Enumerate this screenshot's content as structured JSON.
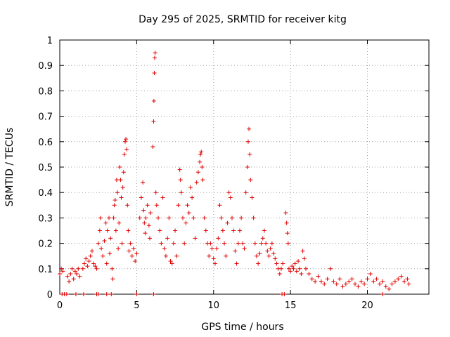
{
  "chart_data": {
    "type": "scatter",
    "title": "Day 295 of 2025, SRMTID for receiver kitg",
    "xlabel": "GPS time / hours",
    "ylabel": "SRMTID / TECUs",
    "xlim": [
      0,
      24
    ],
    "ylim": [
      0,
      1
    ],
    "x_ticks": [
      0,
      5,
      10,
      15,
      20
    ],
    "x_tick_labels": [
      "0",
      "5",
      "10",
      "15",
      "20"
    ],
    "y_ticks": [
      0,
      0.1,
      0.2,
      0.3,
      0.4,
      0.5,
      0.6,
      0.7,
      0.8,
      0.9,
      1
    ],
    "y_tick_labels": [
      "0",
      "0.1",
      "0.2",
      "0.3",
      "0.4",
      "0.5",
      "0.6",
      "0.7",
      "0.8",
      "0.9",
      "1"
    ],
    "grid": true,
    "marker": "plus",
    "series": [
      {
        "name": "SRMTID",
        "color": "#e00000",
        "points": [
          [
            0.0,
            0.08
          ],
          [
            0.1,
            0.1
          ],
          [
            0.2,
            0.09
          ],
          [
            0.5,
            0.07
          ],
          [
            0.6,
            0.05
          ],
          [
            0.7,
            0.08
          ],
          [
            0.8,
            0.1
          ],
          [
            0.9,
            0.06
          ],
          [
            1.0,
            0.09
          ],
          [
            1.1,
            0.08
          ],
          [
            1.2,
            0.1
          ],
          [
            1.3,
            0.07
          ],
          [
            1.5,
            0.1
          ],
          [
            1.6,
            0.12
          ],
          [
            1.7,
            0.14
          ],
          [
            1.8,
            0.11
          ],
          [
            1.9,
            0.13
          ],
          [
            2.0,
            0.15
          ],
          [
            2.1,
            0.17
          ],
          [
            2.2,
            0.12
          ],
          [
            2.3,
            0.11
          ],
          [
            2.4,
            0.1
          ],
          [
            2.5,
            0.2
          ],
          [
            2.6,
            0.25
          ],
          [
            2.65,
            0.3
          ],
          [
            2.7,
            0.18
          ],
          [
            2.8,
            0.15
          ],
          [
            2.9,
            0.21
          ],
          [
            3.0,
            0.28
          ],
          [
            3.05,
            0.12
          ],
          [
            3.1,
            0.25
          ],
          [
            3.2,
            0.3
          ],
          [
            3.25,
            0.16
          ],
          [
            3.3,
            0.22
          ],
          [
            3.4,
            0.1
          ],
          [
            3.45,
            0.06
          ],
          [
            3.5,
            0.3
          ],
          [
            3.55,
            0.35
          ],
          [
            3.6,
            0.37
          ],
          [
            3.65,
            0.25
          ],
          [
            3.7,
            0.45
          ],
          [
            3.75,
            0.4
          ],
          [
            3.8,
            0.18
          ],
          [
            3.85,
            0.28
          ],
          [
            3.9,
            0.5
          ],
          [
            3.95,
            0.45
          ],
          [
            4.0,
            0.38
          ],
          [
            4.05,
            0.2
          ],
          [
            4.1,
            0.42
          ],
          [
            4.15,
            0.48
          ],
          [
            4.2,
            0.55
          ],
          [
            4.25,
            0.6
          ],
          [
            4.3,
            0.61
          ],
          [
            4.35,
            0.57
          ],
          [
            4.4,
            0.35
          ],
          [
            4.45,
            0.25
          ],
          [
            4.5,
            0.17
          ],
          [
            4.6,
            0.2
          ],
          [
            4.7,
            0.15
          ],
          [
            4.8,
            0.18
          ],
          [
            4.9,
            0.13
          ],
          [
            5.0,
            0.16
          ],
          [
            5.2,
            0.3
          ],
          [
            5.3,
            0.38
          ],
          [
            5.4,
            0.44
          ],
          [
            5.45,
            0.33
          ],
          [
            5.5,
            0.28
          ],
          [
            5.55,
            0.24
          ],
          [
            5.6,
            0.3
          ],
          [
            5.7,
            0.35
          ],
          [
            5.8,
            0.27
          ],
          [
            5.85,
            0.22
          ],
          [
            5.9,
            0.32
          ],
          [
            6.05,
            0.58
          ],
          [
            6.1,
            0.68
          ],
          [
            6.12,
            0.76
          ],
          [
            6.15,
            0.87
          ],
          [
            6.17,
            0.93
          ],
          [
            6.2,
            0.95
          ],
          [
            6.25,
            0.4
          ],
          [
            6.3,
            0.35
          ],
          [
            6.4,
            0.3
          ],
          [
            6.5,
            0.25
          ],
          [
            6.6,
            0.2
          ],
          [
            6.7,
            0.38
          ],
          [
            6.8,
            0.18
          ],
          [
            6.9,
            0.15
          ],
          [
            7.0,
            0.22
          ],
          [
            7.1,
            0.3
          ],
          [
            7.2,
            0.13
          ],
          [
            7.3,
            0.12
          ],
          [
            7.4,
            0.2
          ],
          [
            7.5,
            0.25
          ],
          [
            7.6,
            0.15
          ],
          [
            7.7,
            0.35
          ],
          [
            7.8,
            0.49
          ],
          [
            7.85,
            0.45
          ],
          [
            7.9,
            0.4
          ],
          [
            8.0,
            0.3
          ],
          [
            8.1,
            0.2
          ],
          [
            8.2,
            0.28
          ],
          [
            8.3,
            0.35
          ],
          [
            8.4,
            0.32
          ],
          [
            8.5,
            0.42
          ],
          [
            8.6,
            0.38
          ],
          [
            8.7,
            0.3
          ],
          [
            8.8,
            0.22
          ],
          [
            8.9,
            0.44
          ],
          [
            9.0,
            0.48
          ],
          [
            9.1,
            0.52
          ],
          [
            9.15,
            0.55
          ],
          [
            9.2,
            0.56
          ],
          [
            9.25,
            0.5
          ],
          [
            9.3,
            0.45
          ],
          [
            9.4,
            0.3
          ],
          [
            9.5,
            0.25
          ],
          [
            9.6,
            0.2
          ],
          [
            9.7,
            0.15
          ],
          [
            9.8,
            0.2
          ],
          [
            9.9,
            0.18
          ],
          [
            10.0,
            0.14
          ],
          [
            10.1,
            0.12
          ],
          [
            10.2,
            0.18
          ],
          [
            10.3,
            0.22
          ],
          [
            10.4,
            0.35
          ],
          [
            10.5,
            0.3
          ],
          [
            10.6,
            0.25
          ],
          [
            10.7,
            0.2
          ],
          [
            10.8,
            0.15
          ],
          [
            10.9,
            0.28
          ],
          [
            11.0,
            0.4
          ],
          [
            11.1,
            0.38
          ],
          [
            11.2,
            0.3
          ],
          [
            11.3,
            0.25
          ],
          [
            11.4,
            0.17
          ],
          [
            11.5,
            0.12
          ],
          [
            11.6,
            0.2
          ],
          [
            11.7,
            0.25
          ],
          [
            11.8,
            0.3
          ],
          [
            11.9,
            0.2
          ],
          [
            12.0,
            0.18
          ],
          [
            12.1,
            0.4
          ],
          [
            12.2,
            0.5
          ],
          [
            12.25,
            0.6
          ],
          [
            12.3,
            0.65
          ],
          [
            12.35,
            0.55
          ],
          [
            12.4,
            0.45
          ],
          [
            12.5,
            0.38
          ],
          [
            12.6,
            0.3
          ],
          [
            12.7,
            0.2
          ],
          [
            12.8,
            0.15
          ],
          [
            12.9,
            0.12
          ],
          [
            13.0,
            0.16
          ],
          [
            13.1,
            0.2
          ],
          [
            13.2,
            0.22
          ],
          [
            13.3,
            0.25
          ],
          [
            13.4,
            0.2
          ],
          [
            13.5,
            0.17
          ],
          [
            13.6,
            0.15
          ],
          [
            13.7,
            0.18
          ],
          [
            13.8,
            0.2
          ],
          [
            13.9,
            0.16
          ],
          [
            14.0,
            0.14
          ],
          [
            14.1,
            0.12
          ],
          [
            14.2,
            0.1
          ],
          [
            14.3,
            0.08
          ],
          [
            14.4,
            0.1
          ],
          [
            14.5,
            0.12
          ],
          [
            14.7,
            0.32
          ],
          [
            14.75,
            0.28
          ],
          [
            14.8,
            0.24
          ],
          [
            14.85,
            0.2
          ],
          [
            14.9,
            0.1
          ],
          [
            15.0,
            0.09
          ],
          [
            15.1,
            0.11
          ],
          [
            15.2,
            0.1
          ],
          [
            15.3,
            0.12
          ],
          [
            15.4,
            0.09
          ],
          [
            15.5,
            0.13
          ],
          [
            15.6,
            0.1
          ],
          [
            15.7,
            0.08
          ],
          [
            15.8,
            0.17
          ],
          [
            15.9,
            0.14
          ],
          [
            16.0,
            0.1
          ],
          [
            16.2,
            0.08
          ],
          [
            16.4,
            0.06
          ],
          [
            16.6,
            0.05
          ],
          [
            16.8,
            0.07
          ],
          [
            17.0,
            0.05
          ],
          [
            17.2,
            0.04
          ],
          [
            17.4,
            0.06
          ],
          [
            17.6,
            0.1
          ],
          [
            17.8,
            0.05
          ],
          [
            18.0,
            0.04
          ],
          [
            18.2,
            0.06
          ],
          [
            18.4,
            0.03
          ],
          [
            18.6,
            0.04
          ],
          [
            18.8,
            0.05
          ],
          [
            19.0,
            0.06
          ],
          [
            19.2,
            0.04
          ],
          [
            19.4,
            0.03
          ],
          [
            19.6,
            0.05
          ],
          [
            19.8,
            0.04
          ],
          [
            20.0,
            0.06
          ],
          [
            20.2,
            0.08
          ],
          [
            20.4,
            0.05
          ],
          [
            20.6,
            0.06
          ],
          [
            20.8,
            0.04
          ],
          [
            21.0,
            0.05
          ],
          [
            21.2,
            0.03
          ],
          [
            21.4,
            0.02
          ],
          [
            21.6,
            0.04
          ],
          [
            21.8,
            0.05
          ],
          [
            22.0,
            0.06
          ],
          [
            22.2,
            0.07
          ],
          [
            22.4,
            0.05
          ],
          [
            22.6,
            0.06
          ],
          [
            22.7,
            0.04
          ],
          [
            0.15,
            0.0
          ],
          [
            0.3,
            0.0
          ],
          [
            0.45,
            0.0
          ],
          [
            1.05,
            0.0
          ],
          [
            1.55,
            0.0
          ],
          [
            2.4,
            0.0
          ],
          [
            2.5,
            0.0
          ],
          [
            3.05,
            0.0
          ],
          [
            3.35,
            0.0
          ],
          [
            5.0,
            0.0
          ],
          [
            6.1,
            0.0
          ],
          [
            14.45,
            0.0
          ],
          [
            14.6,
            0.0
          ],
          [
            21.0,
            0.0
          ]
        ]
      }
    ]
  }
}
